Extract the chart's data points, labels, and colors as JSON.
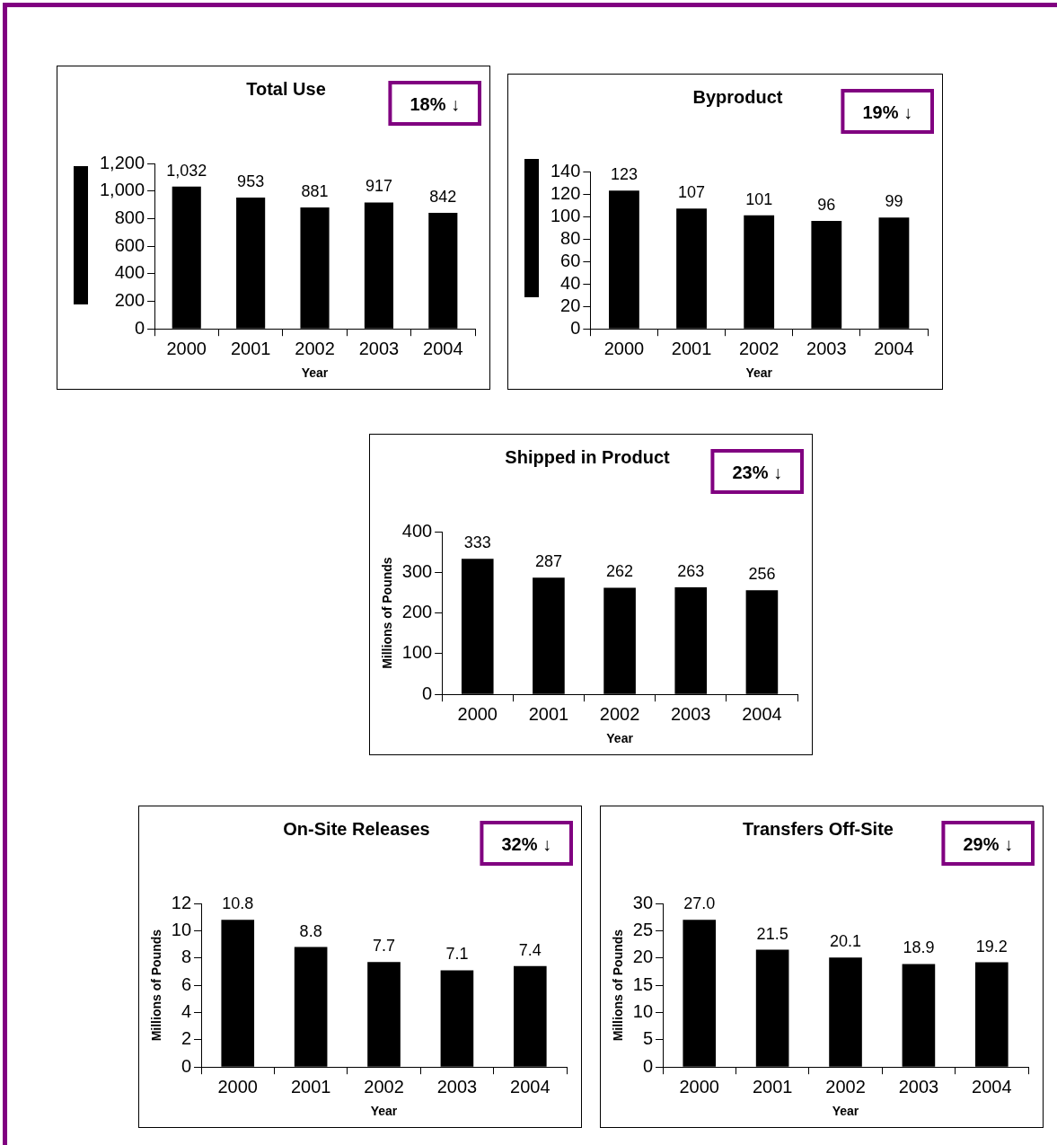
{
  "chart_data": [
    {
      "type": "bar",
      "title": "Total Use",
      "xlabel": "Year",
      "categories": [
        "2000",
        "2001",
        "2002",
        "2003",
        "2004"
      ],
      "values": [
        1032,
        953,
        881,
        917,
        842
      ],
      "color": "#000000",
      "value_labels": [
        "1,032",
        "953",
        "881",
        "917",
        "842"
      ],
      "ylim": [
        0,
        1200
      ],
      "yticks": [
        0,
        200,
        400,
        600,
        800,
        {
          "value": 1000,
          "label": "1,000"
        },
        {
          "value": 1200,
          "label": "1,200"
        }
      ],
      "grid": false,
      "legend": false,
      "annotations": [
        "18% ↓"
      ]
    },
    {
      "type": "bar",
      "title": "Byproduct",
      "xlabel": "Year",
      "categories": [
        "2000",
        "2001",
        "2002",
        "2003",
        "2004"
      ],
      "values": [
        123,
        107,
        101,
        96,
        99
      ],
      "color": "#000000",
      "data_labels": true,
      "ylim": [
        0,
        140
      ],
      "yticks": [
        0,
        20,
        40,
        60,
        80,
        100,
        120,
        140
      ],
      "grid": false,
      "legend": false,
      "annotations": [
        "19% ↓"
      ]
    },
    {
      "type": "bar",
      "title": "Shipped in Product",
      "xlabel": "Year",
      "ylabel": "Millions of Pounds",
      "categories": [
        "2000",
        "2001",
        "2002",
        "2003",
        "2004"
      ],
      "values": [
        333,
        287,
        262,
        263,
        256
      ],
      "color": "#000000",
      "data_labels": true,
      "ylim": [
        0,
        400
      ],
      "yticks": [
        0,
        100,
        200,
        300,
        400
      ],
      "grid": false,
      "legend": false,
      "annotations": [
        "23% ↓"
      ]
    },
    {
      "type": "bar",
      "title": "On-Site Releases",
      "xlabel": "Year",
      "ylabel": "Millions of Pounds",
      "categories": [
        "2000",
        "2001",
        "2002",
        "2003",
        "2004"
      ],
      "values": [
        10.8,
        8.8,
        7.7,
        7.1,
        7.4
      ],
      "color": "#000000",
      "data_labels": true,
      "ylim": [
        0,
        12
      ],
      "yticks": [
        0,
        2,
        4,
        6,
        8,
        10,
        12
      ],
      "grid": false,
      "legend": false,
      "annotations": [
        "32% ↓"
      ]
    },
    {
      "type": "bar",
      "title": "Transfers Off-Site",
      "xlabel": "Year",
      "ylabel": "Millions of Pounds",
      "categories": [
        "2000",
        "2001",
        "2002",
        "2003",
        "2004"
      ],
      "values": [
        27,
        21.5,
        20.1,
        18.9,
        19.2
      ],
      "color": "#000000",
      "value_labels": [
        "27.0",
        "21.5",
        "20.1",
        "18.9",
        "19.2"
      ],
      "ylim": [
        0,
        30
      ],
      "yticks": [
        0,
        5,
        10,
        15,
        20,
        25,
        30
      ],
      "grid": false,
      "legend": false,
      "annotations": [
        "29% ↓"
      ]
    }
  ]
}
